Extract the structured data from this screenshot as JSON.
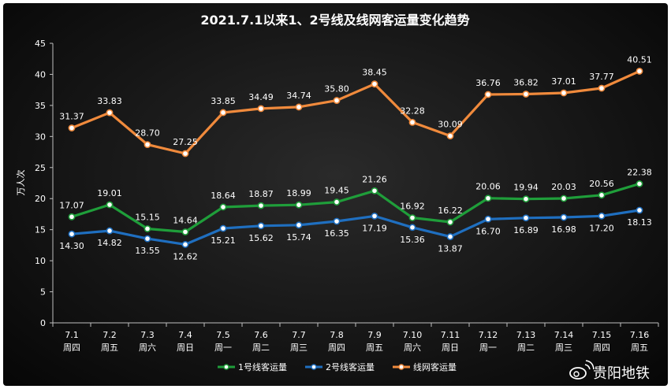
{
  "chart_data": {
    "type": "line",
    "title": "2021.7.1以来1、2号线及线网客运量变化趋势",
    "ylabel": "万人次",
    "ylim": [
      0,
      45
    ],
    "yticks": [
      0,
      5,
      10,
      15,
      20,
      25,
      30,
      35,
      40,
      45
    ],
    "categories": [
      {
        "date": "7.1",
        "day": "周四"
      },
      {
        "date": "7.2",
        "day": "周五"
      },
      {
        "date": "7.3",
        "day": "周六"
      },
      {
        "date": "7.4",
        "day": "周日"
      },
      {
        "date": "7.5",
        "day": "周一"
      },
      {
        "date": "7.6",
        "day": "周二"
      },
      {
        "date": "7.7",
        "day": "周三"
      },
      {
        "date": "7.8",
        "day": "周四"
      },
      {
        "date": "7.9",
        "day": "周五"
      },
      {
        "date": "7.10",
        "day": "周六"
      },
      {
        "date": "7.11",
        "day": "周日"
      },
      {
        "date": "7.12",
        "day": "周一"
      },
      {
        "date": "7.13",
        "day": "周二"
      },
      {
        "date": "7.14",
        "day": "周三"
      },
      {
        "date": "7.15",
        "day": "周四"
      },
      {
        "date": "7.16",
        "day": "周五"
      }
    ],
    "series": [
      {
        "name": "1号线客运量",
        "color": "#1f9e3a",
        "label_pos": "above",
        "labels": [
          "17.07",
          "19.01",
          "15.15",
          "14.64",
          "18.64",
          "18.87",
          "18.99",
          "19.45",
          "21.26",
          "16.92",
          "16.22",
          "20.06",
          "19.94",
          "20.03",
          "20.56",
          "22.38"
        ],
        "values": [
          17.07,
          19.01,
          15.15,
          14.64,
          18.64,
          18.87,
          18.99,
          19.45,
          21.26,
          16.92,
          16.22,
          20.06,
          19.94,
          20.03,
          20.56,
          22.38
        ]
      },
      {
        "name": "2号线客运量",
        "color": "#1f6fc0",
        "label_pos": "below",
        "labels": [
          "14.30",
          "14.82",
          "13.55",
          "12.62",
          "15.21",
          "15.62",
          "15.74",
          "16.35",
          "17.19",
          "15.36",
          "13.87",
          "16.70",
          "16.89",
          "16.98",
          "17.20",
          "18.13"
        ],
        "values": [
          14.3,
          14.82,
          13.55,
          12.62,
          15.21,
          15.62,
          15.74,
          16.35,
          17.19,
          15.36,
          13.87,
          16.7,
          16.89,
          16.98,
          17.2,
          18.13
        ]
      },
      {
        "name": "线网客运量",
        "color": "#f08a3c",
        "label_pos": "above",
        "labels": [
          "31.37",
          "33.83",
          "28.70",
          "27.25",
          "33.85",
          "34.49",
          "34.74",
          "35.80",
          "38.45",
          "32.28",
          "30.09",
          "36.76",
          "36.82",
          "37.01",
          "37.77",
          "40.51"
        ],
        "values": [
          31.37,
          33.83,
          28.7,
          27.25,
          33.85,
          34.49,
          34.74,
          35.8,
          38.45,
          32.28,
          30.09,
          36.76,
          36.82,
          37.01,
          37.77,
          40.51
        ]
      }
    ],
    "legend_position": "bottom",
    "grid": false
  },
  "watermark": "贵阳地铁",
  "colors": {
    "axis": "#bfbfbf",
    "text": "#ffffff",
    "background": "#1a1a1a"
  }
}
